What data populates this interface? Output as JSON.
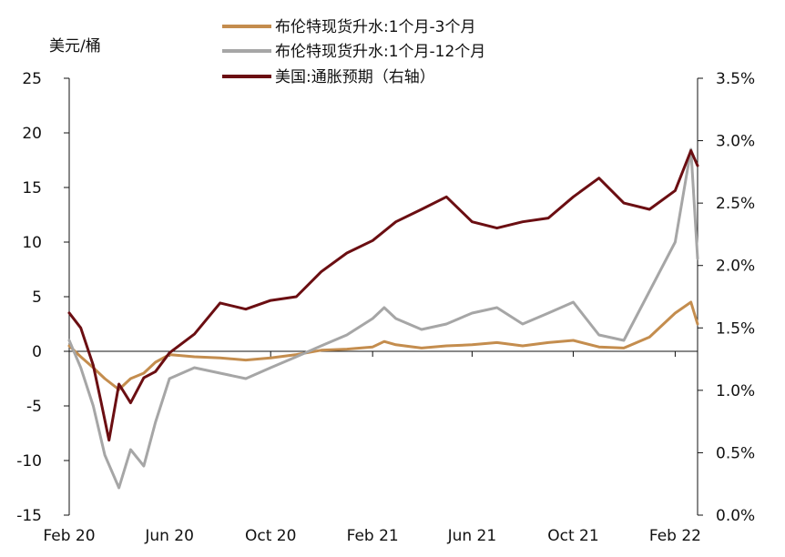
{
  "chart_data": {
    "type": "line",
    "left_axis_label": "美元/桶",
    "left_axis": {
      "min": -15,
      "max": 25,
      "ticks": [
        25,
        20,
        15,
        10,
        5,
        0,
        -5,
        -10,
        -15
      ]
    },
    "right_axis": {
      "min": 0.0,
      "max": 3.5,
      "tick_labels": [
        "3.5%",
        "3.0%",
        "2.5%",
        "2.0%",
        "1.5%",
        "1.0%",
        "0.5%",
        "0.0%"
      ],
      "tick_values": [
        3.5,
        3.0,
        2.5,
        2.0,
        1.5,
        1.0,
        0.5,
        0.0
      ]
    },
    "x_tick_labels": [
      "Feb 20",
      "Jun 20",
      "Oct 20",
      "Feb 21",
      "Jun 21",
      "Oct 21",
      "Feb 22"
    ],
    "x_tick_dates": [
      "2020-02-01",
      "2020-06-01",
      "2020-10-01",
      "2021-02-01",
      "2021-06-01",
      "2021-10-01",
      "2022-02-01"
    ],
    "x_range": [
      "2020-02-01",
      "2022-02-28"
    ],
    "legend_position": "top-center",
    "grid": false,
    "series": [
      {
        "name": "布伦特现货升水:1个月-3个月",
        "axis": "left",
        "color": "#C48D4E",
        "points": [
          [
            "2020-02-01",
            0.5
          ],
          [
            "2020-02-15",
            -0.5
          ],
          [
            "2020-03-01",
            -1.5
          ],
          [
            "2020-03-15",
            -2.5
          ],
          [
            "2020-04-01",
            -3.5
          ],
          [
            "2020-04-15",
            -2.5
          ],
          [
            "2020-05-01",
            -2.0
          ],
          [
            "2020-05-15",
            -1.0
          ],
          [
            "2020-06-01",
            -0.3
          ],
          [
            "2020-07-01",
            -0.5
          ],
          [
            "2020-08-01",
            -0.6
          ],
          [
            "2020-09-01",
            -0.8
          ],
          [
            "2020-10-01",
            -0.6
          ],
          [
            "2020-11-01",
            -0.3
          ],
          [
            "2020-12-01",
            0.1
          ],
          [
            "2021-01-01",
            0.2
          ],
          [
            "2021-02-01",
            0.4
          ],
          [
            "2021-02-15",
            0.9
          ],
          [
            "2021-03-01",
            0.6
          ],
          [
            "2021-04-01",
            0.3
          ],
          [
            "2021-05-01",
            0.5
          ],
          [
            "2021-06-01",
            0.6
          ],
          [
            "2021-07-01",
            0.8
          ],
          [
            "2021-08-01",
            0.5
          ],
          [
            "2021-09-01",
            0.8
          ],
          [
            "2021-10-01",
            1.0
          ],
          [
            "2021-11-01",
            0.4
          ],
          [
            "2021-12-01",
            0.3
          ],
          [
            "2022-01-01",
            1.3
          ],
          [
            "2022-02-01",
            3.5
          ],
          [
            "2022-02-20",
            4.5
          ],
          [
            "2022-02-28",
            2.5
          ]
        ]
      },
      {
        "name": "布伦特现货升水:1个月-12个月",
        "axis": "left",
        "color": "#A6A6A6",
        "points": [
          [
            "2020-02-01",
            1.0
          ],
          [
            "2020-02-15",
            -1.5
          ],
          [
            "2020-03-01",
            -5.0
          ],
          [
            "2020-03-15",
            -9.5
          ],
          [
            "2020-04-01",
            -12.5
          ],
          [
            "2020-04-15",
            -9.0
          ],
          [
            "2020-05-01",
            -10.5
          ],
          [
            "2020-05-15",
            -6.5
          ],
          [
            "2020-06-01",
            -2.5
          ],
          [
            "2020-07-01",
            -1.5
          ],
          [
            "2020-08-01",
            -2.0
          ],
          [
            "2020-09-01",
            -2.5
          ],
          [
            "2020-10-01",
            -1.5
          ],
          [
            "2020-11-01",
            -0.5
          ],
          [
            "2020-12-01",
            0.5
          ],
          [
            "2021-01-01",
            1.5
          ],
          [
            "2021-02-01",
            3.0
          ],
          [
            "2021-02-15",
            4.0
          ],
          [
            "2021-03-01",
            3.0
          ],
          [
            "2021-04-01",
            2.0
          ],
          [
            "2021-05-01",
            2.5
          ],
          [
            "2021-06-01",
            3.5
          ],
          [
            "2021-07-01",
            4.0
          ],
          [
            "2021-08-01",
            2.5
          ],
          [
            "2021-09-01",
            3.5
          ],
          [
            "2021-10-01",
            4.5
          ],
          [
            "2021-11-01",
            1.5
          ],
          [
            "2021-12-01",
            1.0
          ],
          [
            "2022-01-01",
            5.5
          ],
          [
            "2022-02-01",
            10.0
          ],
          [
            "2022-02-20",
            18.5
          ],
          [
            "2022-02-28",
            8.5
          ]
        ]
      },
      {
        "name": "美国:通胀预期（右轴）",
        "axis": "right",
        "color": "#6B0E12",
        "points": [
          [
            "2020-02-01",
            1.62
          ],
          [
            "2020-02-15",
            1.5
          ],
          [
            "2020-03-01",
            1.2
          ],
          [
            "2020-03-10",
            0.92
          ],
          [
            "2020-03-20",
            0.6
          ],
          [
            "2020-04-01",
            1.05
          ],
          [
            "2020-04-15",
            0.9
          ],
          [
            "2020-05-01",
            1.1
          ],
          [
            "2020-05-15",
            1.15
          ],
          [
            "2020-06-01",
            1.3
          ],
          [
            "2020-07-01",
            1.45
          ],
          [
            "2020-08-01",
            1.7
          ],
          [
            "2020-09-01",
            1.65
          ],
          [
            "2020-10-01",
            1.72
          ],
          [
            "2020-11-01",
            1.75
          ],
          [
            "2020-12-01",
            1.95
          ],
          [
            "2021-01-01",
            2.1
          ],
          [
            "2021-02-01",
            2.2
          ],
          [
            "2021-03-01",
            2.35
          ],
          [
            "2021-04-01",
            2.45
          ],
          [
            "2021-05-01",
            2.55
          ],
          [
            "2021-06-01",
            2.35
          ],
          [
            "2021-07-01",
            2.3
          ],
          [
            "2021-08-01",
            2.35
          ],
          [
            "2021-09-01",
            2.38
          ],
          [
            "2021-10-01",
            2.55
          ],
          [
            "2021-11-01",
            2.7
          ],
          [
            "2021-12-01",
            2.5
          ],
          [
            "2022-01-01",
            2.45
          ],
          [
            "2022-02-01",
            2.6
          ],
          [
            "2022-02-20",
            2.92
          ],
          [
            "2022-02-28",
            2.8
          ]
        ]
      }
    ]
  }
}
